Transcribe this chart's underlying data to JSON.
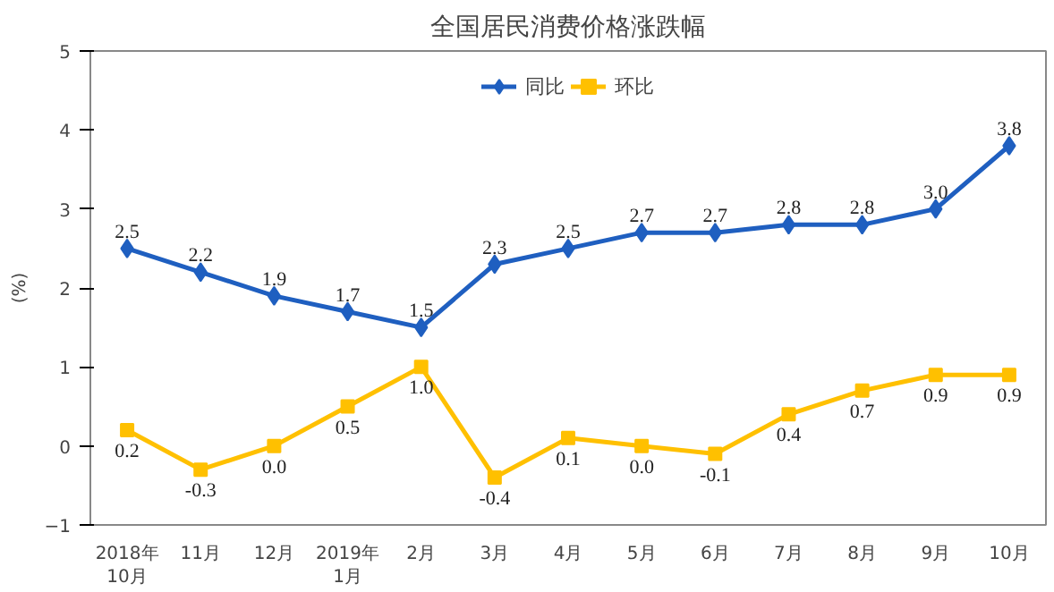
{
  "chart_data": {
    "type": "line",
    "title": "全国居民消费价格涨跌幅",
    "ylabel": "(%)",
    "categories": [
      "2018年\n10月",
      "11月",
      "12月",
      "2019年\n1月",
      "2月",
      "3月",
      "4月",
      "5月",
      "6月",
      "7月",
      "8月",
      "9月",
      "10月"
    ],
    "series": [
      {
        "name": "同比",
        "color": "#1f5fc0",
        "marker": "diamond",
        "values": [
          2.5,
          2.2,
          1.9,
          1.7,
          1.5,
          2.3,
          2.5,
          2.7,
          2.7,
          2.8,
          2.8,
          3.0,
          3.8
        ],
        "value_labels": [
          "2.5",
          "2.2",
          "1.9",
          "1.7",
          "1.5",
          "2.3",
          "2.5",
          "2.7",
          "2.7",
          "2.8",
          "2.8",
          "3.0",
          "3.8"
        ]
      },
      {
        "name": "环比",
        "color": "#ffc000",
        "marker": "square",
        "values": [
          0.2,
          -0.3,
          0.0,
          0.5,
          1.0,
          -0.4,
          0.1,
          0.0,
          -0.1,
          0.4,
          0.7,
          0.9,
          0.9
        ],
        "value_labels": [
          "0.2",
          "-0.3",
          "0.0",
          "0.5",
          "1.0",
          "-0.4",
          "0.1",
          "0.0",
          "-0.1",
          "0.4",
          "0.7",
          "0.9",
          "0.9"
        ]
      }
    ],
    "ylim": [
      -1,
      5
    ],
    "yticks": [
      -1,
      0,
      1,
      2,
      3,
      4,
      5
    ],
    "grid": false,
    "legend": "top",
    "line_style": "solid"
  }
}
